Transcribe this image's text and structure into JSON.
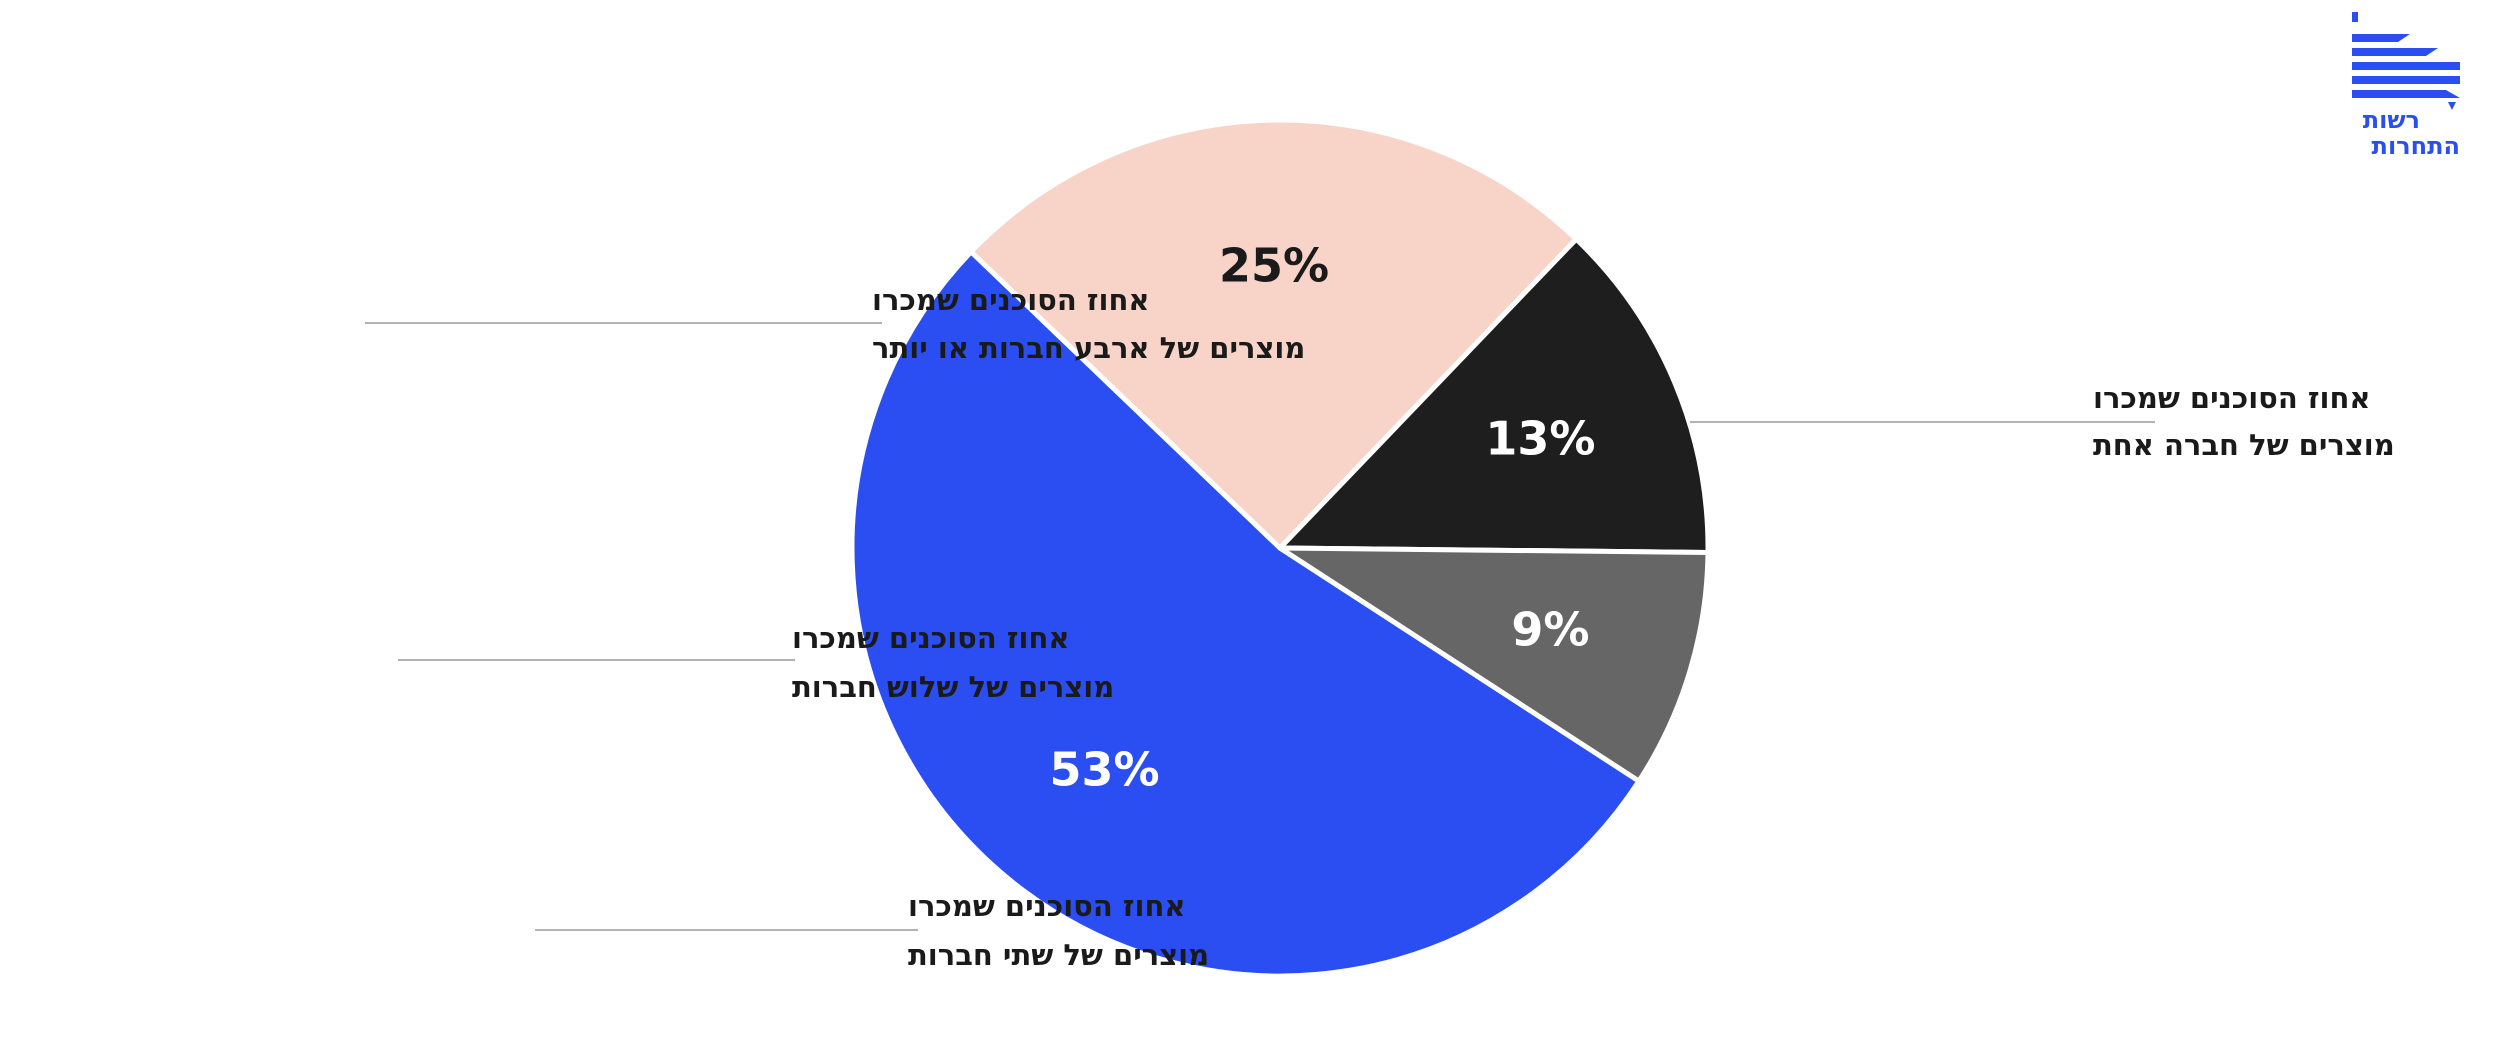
{
  "logo": {
    "line1": "רשות",
    "line2": "התחרות",
    "color": "#2a4ef2"
  },
  "chart_data": {
    "type": "pie",
    "title": "",
    "start_angle_deg": 123,
    "direction": "clockwise",
    "slices": [
      {
        "label_line1": "אחוז הסוכנים שמכרו",
        "label_line2": "מוצרים של חברה אחת",
        "value": 53,
        "display": "53%",
        "color": "#2a4ef2",
        "text_color": "#ffffff",
        "label_side": "right"
      },
      {
        "label_line1": "אחוז הסוכנים שמכרו",
        "label_line2": "מוצרים של שתי חברות",
        "value": 25,
        "display": "25%",
        "color": "#f7d4c7",
        "text_color": "#1a1a1a",
        "label_side": "left"
      },
      {
        "label_line1": "אחוז הסוכנים שמכרו",
        "label_line2": "מוצרים של שלוש חברות",
        "value": 13,
        "display": "13%",
        "color": "#1e1e1e",
        "text_color": "#ffffff",
        "label_side": "left"
      },
      {
        "label_line1": "אחוז הסוכנים שמכרו",
        "label_line2": "מוצרים של ארבע חברות או יותר",
        "value": 9,
        "display": "9%",
        "color": "#666666",
        "text_color": "#ffffff",
        "label_side": "left"
      }
    ]
  }
}
